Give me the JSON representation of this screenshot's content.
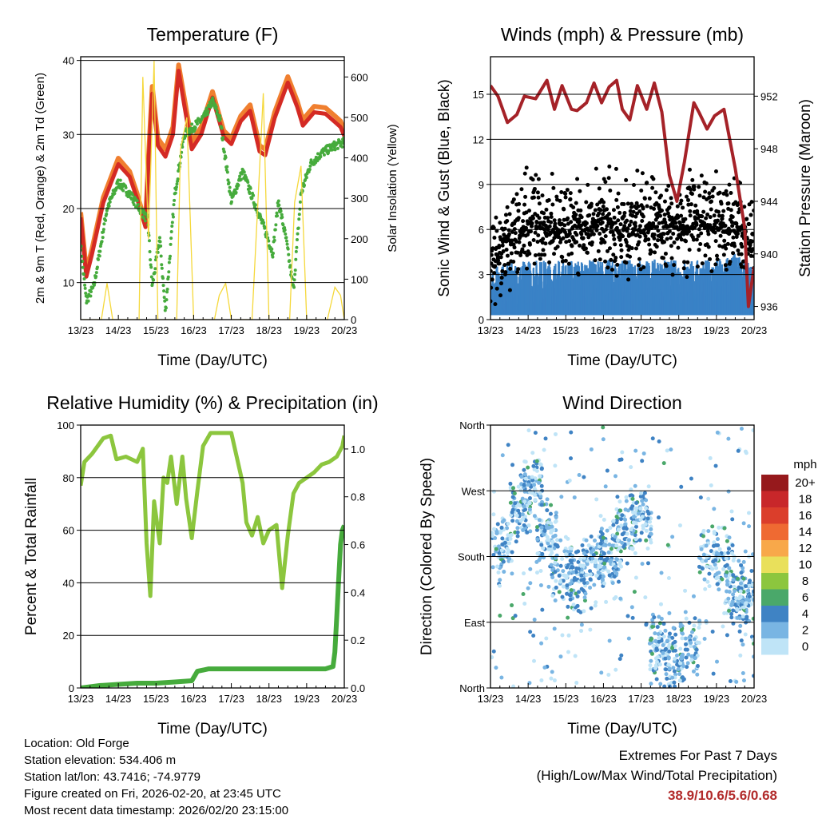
{
  "chart_data": [
    {
      "type": "line",
      "title": "Temperature (F)",
      "xlabel": "Time (Day/UTC)",
      "ylabel": "2m & 9m T (Red, Orange) & 2m Td (Green)",
      "ylabel_right": "Solar Insolation (Yellow)",
      "x_ticks": [
        "13/23",
        "14/23",
        "15/23",
        "16/23",
        "17/23",
        "18/23",
        "19/23",
        "20/23"
      ],
      "xlim": [
        0,
        7
      ],
      "ylim": [
        5,
        40.5
      ],
      "y_ticks": [
        10,
        20,
        30,
        40
      ],
      "ylim_right": [
        0,
        650
      ],
      "y_ticks_right": [
        0,
        100,
        200,
        300,
        400,
        500,
        600
      ],
      "gridlines": [
        10,
        20,
        30,
        40
      ],
      "series": [
        {
          "name": "9m T",
          "color": "#f07f2f",
          "x": [
            0,
            0.15,
            0.3,
            0.6,
            1.0,
            1.3,
            1.5,
            1.72,
            1.8,
            1.9,
            2.05,
            2.25,
            2.45,
            2.6,
            2.75,
            2.95,
            3.2,
            3.5,
            3.8,
            4.0,
            4.25,
            4.5,
            4.75,
            4.9,
            5.15,
            5.5,
            5.75,
            5.9,
            6.2,
            6.5,
            6.75,
            6.9,
            7.0
          ],
          "values": [
            19.5,
            11.5,
            14.5,
            21.5,
            26.8,
            25.0,
            22.0,
            18.0,
            27.0,
            36.5,
            29.5,
            28.0,
            31.0,
            39.4,
            35.0,
            29.0,
            31.0,
            35.8,
            30.5,
            29.5,
            32.5,
            34.0,
            28.5,
            28.0,
            33.0,
            37.8,
            34.5,
            32.0,
            33.8,
            33.6,
            32.5,
            31.8,
            30.5
          ]
        },
        {
          "name": "2m T",
          "color": "#d42a24",
          "x": [
            0,
            0.15,
            0.3,
            0.6,
            1.0,
            1.3,
            1.5,
            1.72,
            1.8,
            1.9,
            2.05,
            2.25,
            2.45,
            2.6,
            2.75,
            2.95,
            3.2,
            3.5,
            3.8,
            4.0,
            4.25,
            4.5,
            4.75,
            4.9,
            5.15,
            5.5,
            5.75,
            5.9,
            6.2,
            6.5,
            6.75,
            6.9,
            7.0
          ],
          "values": [
            18.8,
            10.8,
            13.8,
            20.8,
            26.0,
            24.3,
            21.3,
            17.5,
            26.2,
            35.5,
            28.5,
            27.0,
            30.0,
            38.6,
            34.0,
            28.0,
            30.0,
            35.0,
            29.7,
            28.7,
            31.8,
            33.2,
            27.7,
            27.2,
            32.2,
            37.0,
            33.7,
            31.2,
            33.0,
            32.8,
            31.7,
            31.0,
            29.8
          ]
        },
        {
          "name": "2m Td",
          "color": "#46ab3c",
          "x": [
            0,
            0.15,
            0.35,
            0.7,
            1.0,
            1.3,
            1.5,
            1.7,
            1.78,
            1.9,
            2.1,
            2.25,
            2.5,
            2.75,
            3.0,
            3.3,
            3.5,
            3.7,
            4.0,
            4.3,
            4.6,
            4.9,
            5.1,
            5.25,
            5.45,
            5.65,
            5.85,
            6.1,
            6.4,
            6.75,
            7.0
          ],
          "values": [
            15.0,
            7.5,
            9.5,
            20.0,
            23.5,
            22.0,
            20.5,
            19.0,
            18.5,
            9.5,
            16.0,
            6.0,
            22.0,
            30.0,
            31.0,
            32.5,
            34.5,
            32.0,
            21.0,
            25.0,
            21.0,
            17.0,
            14.0,
            21.0,
            16.0,
            9.0,
            22.0,
            26.0,
            27.5,
            28.5,
            29.0
          ]
        },
        {
          "name": "Solar Insolation",
          "color": "#f5d83b",
          "axis": "right",
          "x": [
            0,
            0.55,
            0.7,
            0.85,
            1.0,
            1.55,
            1.65,
            1.8,
            1.95,
            2.05,
            2.55,
            2.65,
            2.82,
            3.0,
            3.55,
            3.68,
            3.85,
            4.0,
            4.55,
            4.7,
            4.85,
            5.0,
            5.55,
            5.68,
            5.85,
            6.0,
            6.55,
            6.75,
            6.9,
            7.0
          ],
          "values": [
            0,
            0,
            90,
            0,
            0,
            0,
            600,
            200,
            640,
            0,
            0,
            420,
            500,
            0,
            0,
            60,
            90,
            0,
            0,
            280,
            560,
            0,
            0,
            290,
            380,
            0,
            0,
            80,
            60,
            0
          ]
        }
      ]
    },
    {
      "type": "scatter",
      "title": "Winds (mph) & Pressure (mb)",
      "xlabel": "Time (Day/UTC)",
      "ylabel": "Sonic Wind & Gust (Blue, Black)",
      "ylabel_right": "Station Pressure (Maroon)",
      "x_ticks": [
        "13/23",
        "14/23",
        "15/23",
        "16/23",
        "17/23",
        "18/23",
        "19/23",
        "20/23"
      ],
      "xlim": [
        0,
        7
      ],
      "ylim": [
        0,
        17.5
      ],
      "y_ticks": [
        0,
        3,
        6,
        9,
        12,
        15
      ],
      "ylim_right": [
        935,
        955
      ],
      "y_ticks_right": [
        936,
        940,
        944,
        948,
        952
      ],
      "gridlines": [
        3,
        6,
        9,
        12,
        15
      ],
      "series": [
        {
          "name": "Sonic Wind",
          "color": "#3a82c6",
          "mean_profile_x": [
            0,
            1,
            2,
            3,
            4,
            5,
            6,
            6.5,
            7
          ],
          "mean_profile_y": [
            2.0,
            2.5,
            2.5,
            2.5,
            2.5,
            2.5,
            2.5,
            3.0,
            2.0
          ]
        },
        {
          "name": "Gust",
          "color": "#000000",
          "mean_profile_x": [
            0,
            0.5,
            1,
            1.5,
            2,
            2.5,
            3,
            3.5,
            4,
            4.5,
            5,
            5.5,
            6,
            6.5,
            7
          ],
          "mean_profile_y": [
            3.5,
            5.0,
            6.5,
            6.0,
            5.5,
            6.0,
            6.5,
            6.0,
            6.0,
            6.5,
            6.0,
            6.5,
            6.0,
            6.0,
            5.0
          ]
        },
        {
          "name": "Station Pressure",
          "color": "#a52228",
          "axis": "right",
          "x": [
            0,
            0.2,
            0.45,
            0.7,
            0.9,
            1.2,
            1.5,
            1.7,
            1.9,
            2.15,
            2.3,
            2.55,
            2.75,
            2.95,
            3.15,
            3.35,
            3.5,
            3.7,
            3.9,
            4.15,
            4.35,
            4.55,
            4.75,
            4.95,
            5.15,
            5.4,
            5.55,
            5.75,
            5.95,
            6.2,
            6.5,
            6.75,
            6.85,
            6.95,
            7.0
          ],
          "values": [
            952.8,
            952.0,
            950.0,
            950.6,
            952.0,
            951.8,
            953.2,
            951.0,
            952.8,
            951.0,
            950.9,
            951.5,
            953.0,
            951.5,
            952.7,
            953.2,
            951.0,
            950.2,
            952.8,
            951.0,
            953.0,
            950.8,
            946.0,
            944.0,
            947.0,
            951.5,
            950.7,
            949.5,
            950.5,
            951.0,
            946.5,
            942.0,
            936.0,
            938.0,
            939.0
          ]
        }
      ]
    },
    {
      "type": "line",
      "title": "Relative Humidity (%) & Precipitation (in)",
      "xlabel": "Time (Day/UTC)",
      "ylabel": "Percent & Total Rainfall",
      "x_ticks": [
        "13/23",
        "14/23",
        "15/23",
        "16/23",
        "17/23",
        "18/23",
        "19/23",
        "20/23"
      ],
      "xlim": [
        0,
        7
      ],
      "ylim": [
        0,
        100
      ],
      "y_ticks": [
        0,
        20,
        40,
        60,
        80,
        100
      ],
      "ylim_right": [
        0,
        1.1
      ],
      "y_ticks_right": [
        "0.0",
        "0.2",
        "0.4",
        "0.6",
        "0.8",
        "1.0"
      ],
      "gridlines": [
        20,
        40,
        60,
        80
      ],
      "series": [
        {
          "name": "Relative Humidity",
          "color": "#8cc63e",
          "x": [
            0,
            0.1,
            0.3,
            0.6,
            0.8,
            0.95,
            1.2,
            1.5,
            1.65,
            1.75,
            1.85,
            1.95,
            2.1,
            2.2,
            2.3,
            2.4,
            2.55,
            2.7,
            2.8,
            2.95,
            3.1,
            3.25,
            3.45,
            3.7,
            4.0,
            4.3,
            4.4,
            4.55,
            4.7,
            4.85,
            5.0,
            5.2,
            5.35,
            5.5,
            5.65,
            5.8,
            6.0,
            6.2,
            6.4,
            6.6,
            6.8,
            6.95,
            7.0
          ],
          "values": [
            77,
            86,
            89,
            95,
            96,
            87,
            88,
            86,
            91,
            55,
            35,
            71,
            55,
            80,
            78,
            88,
            70,
            88,
            72,
            57,
            75,
            92,
            97,
            97,
            97,
            78,
            63,
            58,
            65,
            55,
            60,
            62,
            38,
            58,
            74,
            78,
            80,
            82,
            85,
            86,
            88,
            92,
            96
          ]
        },
        {
          "name": "Total Precipitation",
          "color": "#46ab3c",
          "axis": "right",
          "x": [
            0,
            0.5,
            1.0,
            1.5,
            2.0,
            2.5,
            2.95,
            3.1,
            3.4,
            4.0,
            5.0,
            6.0,
            6.5,
            6.7,
            6.75,
            6.8,
            6.85,
            6.9,
            6.95,
            7.0
          ],
          "values": [
            0.0,
            0.01,
            0.015,
            0.02,
            0.02,
            0.025,
            0.03,
            0.07,
            0.08,
            0.08,
            0.08,
            0.08,
            0.08,
            0.09,
            0.15,
            0.3,
            0.45,
            0.6,
            0.66,
            0.68
          ]
        }
      ]
    },
    {
      "type": "scatter",
      "title": "Wind Direction",
      "xlabel": "Time (Day/UTC)",
      "ylabel": "Direction (Colored By Speed)",
      "x_ticks": [
        "13/23",
        "14/23",
        "15/23",
        "16/23",
        "17/23",
        "18/23",
        "19/23",
        "20/23"
      ],
      "xlim": [
        0,
        7
      ],
      "ylim": [
        0,
        360
      ],
      "y_ticks": [
        "North",
        "East",
        "South",
        "West",
        "North"
      ],
      "y_tick_values": [
        0,
        90,
        180,
        270,
        360
      ],
      "gridlines": [
        90,
        180,
        270
      ],
      "clusters_x": [
        0.3,
        0.8,
        1.1,
        1.5,
        1.9,
        2.3,
        2.8,
        3.2,
        3.6,
        4.0,
        4.5,
        4.9,
        5.3,
        5.8,
        6.2,
        6.5,
        6.8
      ],
      "clusters_y": [
        190,
        250,
        280,
        200,
        160,
        150,
        170,
        190,
        220,
        230,
        60,
        40,
        60,
        180,
        170,
        130,
        120
      ],
      "legend": {
        "title": "mph",
        "labels": [
          "20+",
          "18",
          "16",
          "14",
          "12",
          "10",
          "8",
          "6",
          "4",
          "2",
          "0"
        ],
        "colors": [
          "#96191c",
          "#c8272a",
          "#db3e2b",
          "#ef6a32",
          "#f8a84a",
          "#e9e05b",
          "#8cc63e",
          "#4aa86a",
          "#3f83c4",
          "#79b5e3",
          "#bfe4f7"
        ]
      }
    }
  ],
  "info": {
    "location": "Location: Old Forge",
    "elevation": "Station elevation: 534.406 m",
    "latlon": "Station lat/lon: 43.7416; -74.9779",
    "created": "Figure created on Fri, 2026-02-20, at 23:45 UTC",
    "recent": "Most recent data timestamp: 2026/02/20 23:15:00"
  },
  "extremes": {
    "title": "Extremes For Past 7 Days",
    "subtitle": "(High/Low/Max Wind/Total Precipitation)",
    "values": "38.9/10.6/5.6/0.68"
  }
}
